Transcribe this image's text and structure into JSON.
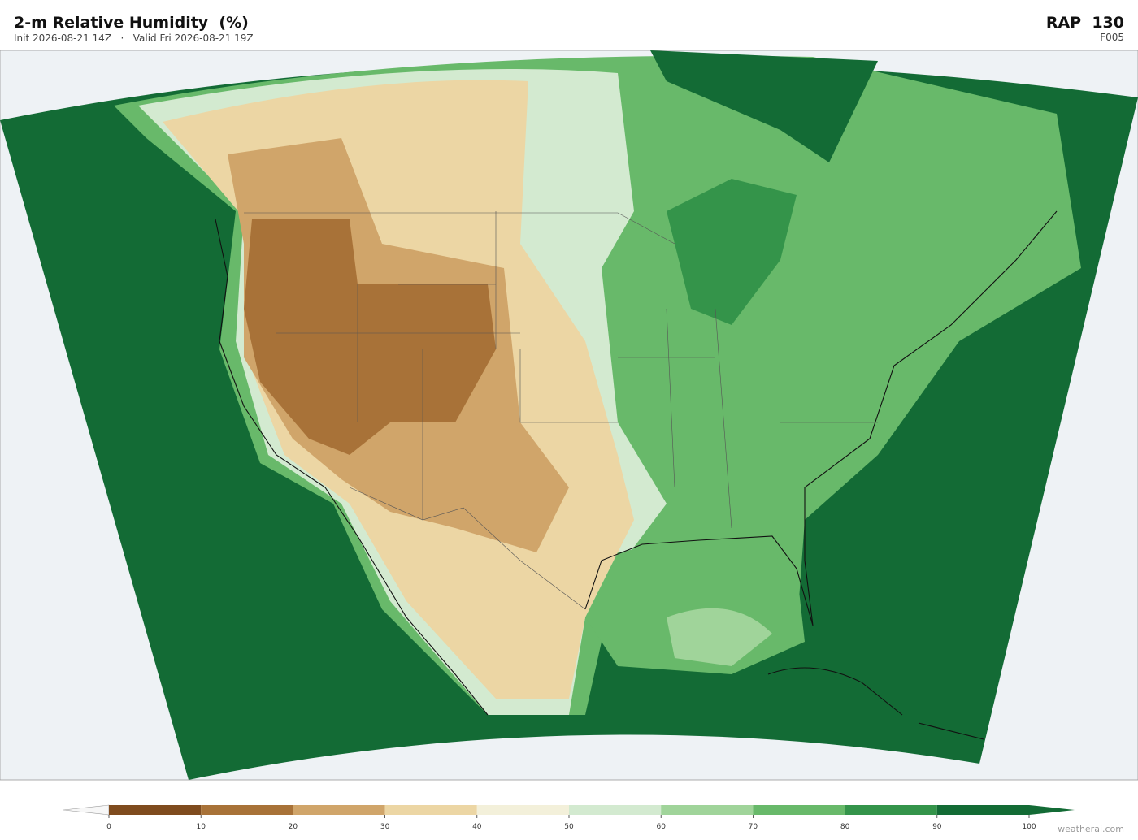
{
  "header": {
    "title": "2-m Relative Humidity  (%)",
    "subtitle": "Init 2026-08-21 14Z   ·   Valid Fri 2026-08-21 19Z",
    "model": "RAP  130",
    "forecast_hour": "F005"
  },
  "colorbar": {
    "lim": [
      0,
      100
    ],
    "ticks": [
      0,
      10,
      20,
      30,
      40,
      50,
      60,
      70,
      80,
      90,
      100
    ],
    "colors": [
      "#7f4b1e",
      "#a87238",
      "#d0a56a",
      "#ecd6a4",
      "#f3f0da",
      "#d3ead0",
      "#a0d49a",
      "#68b96a",
      "#34944a",
      "#136b35"
    ],
    "under_color": "#f7f7f7",
    "over_color": "#136b35"
  },
  "footer": {
    "credit": "weatherai.com"
  }
}
